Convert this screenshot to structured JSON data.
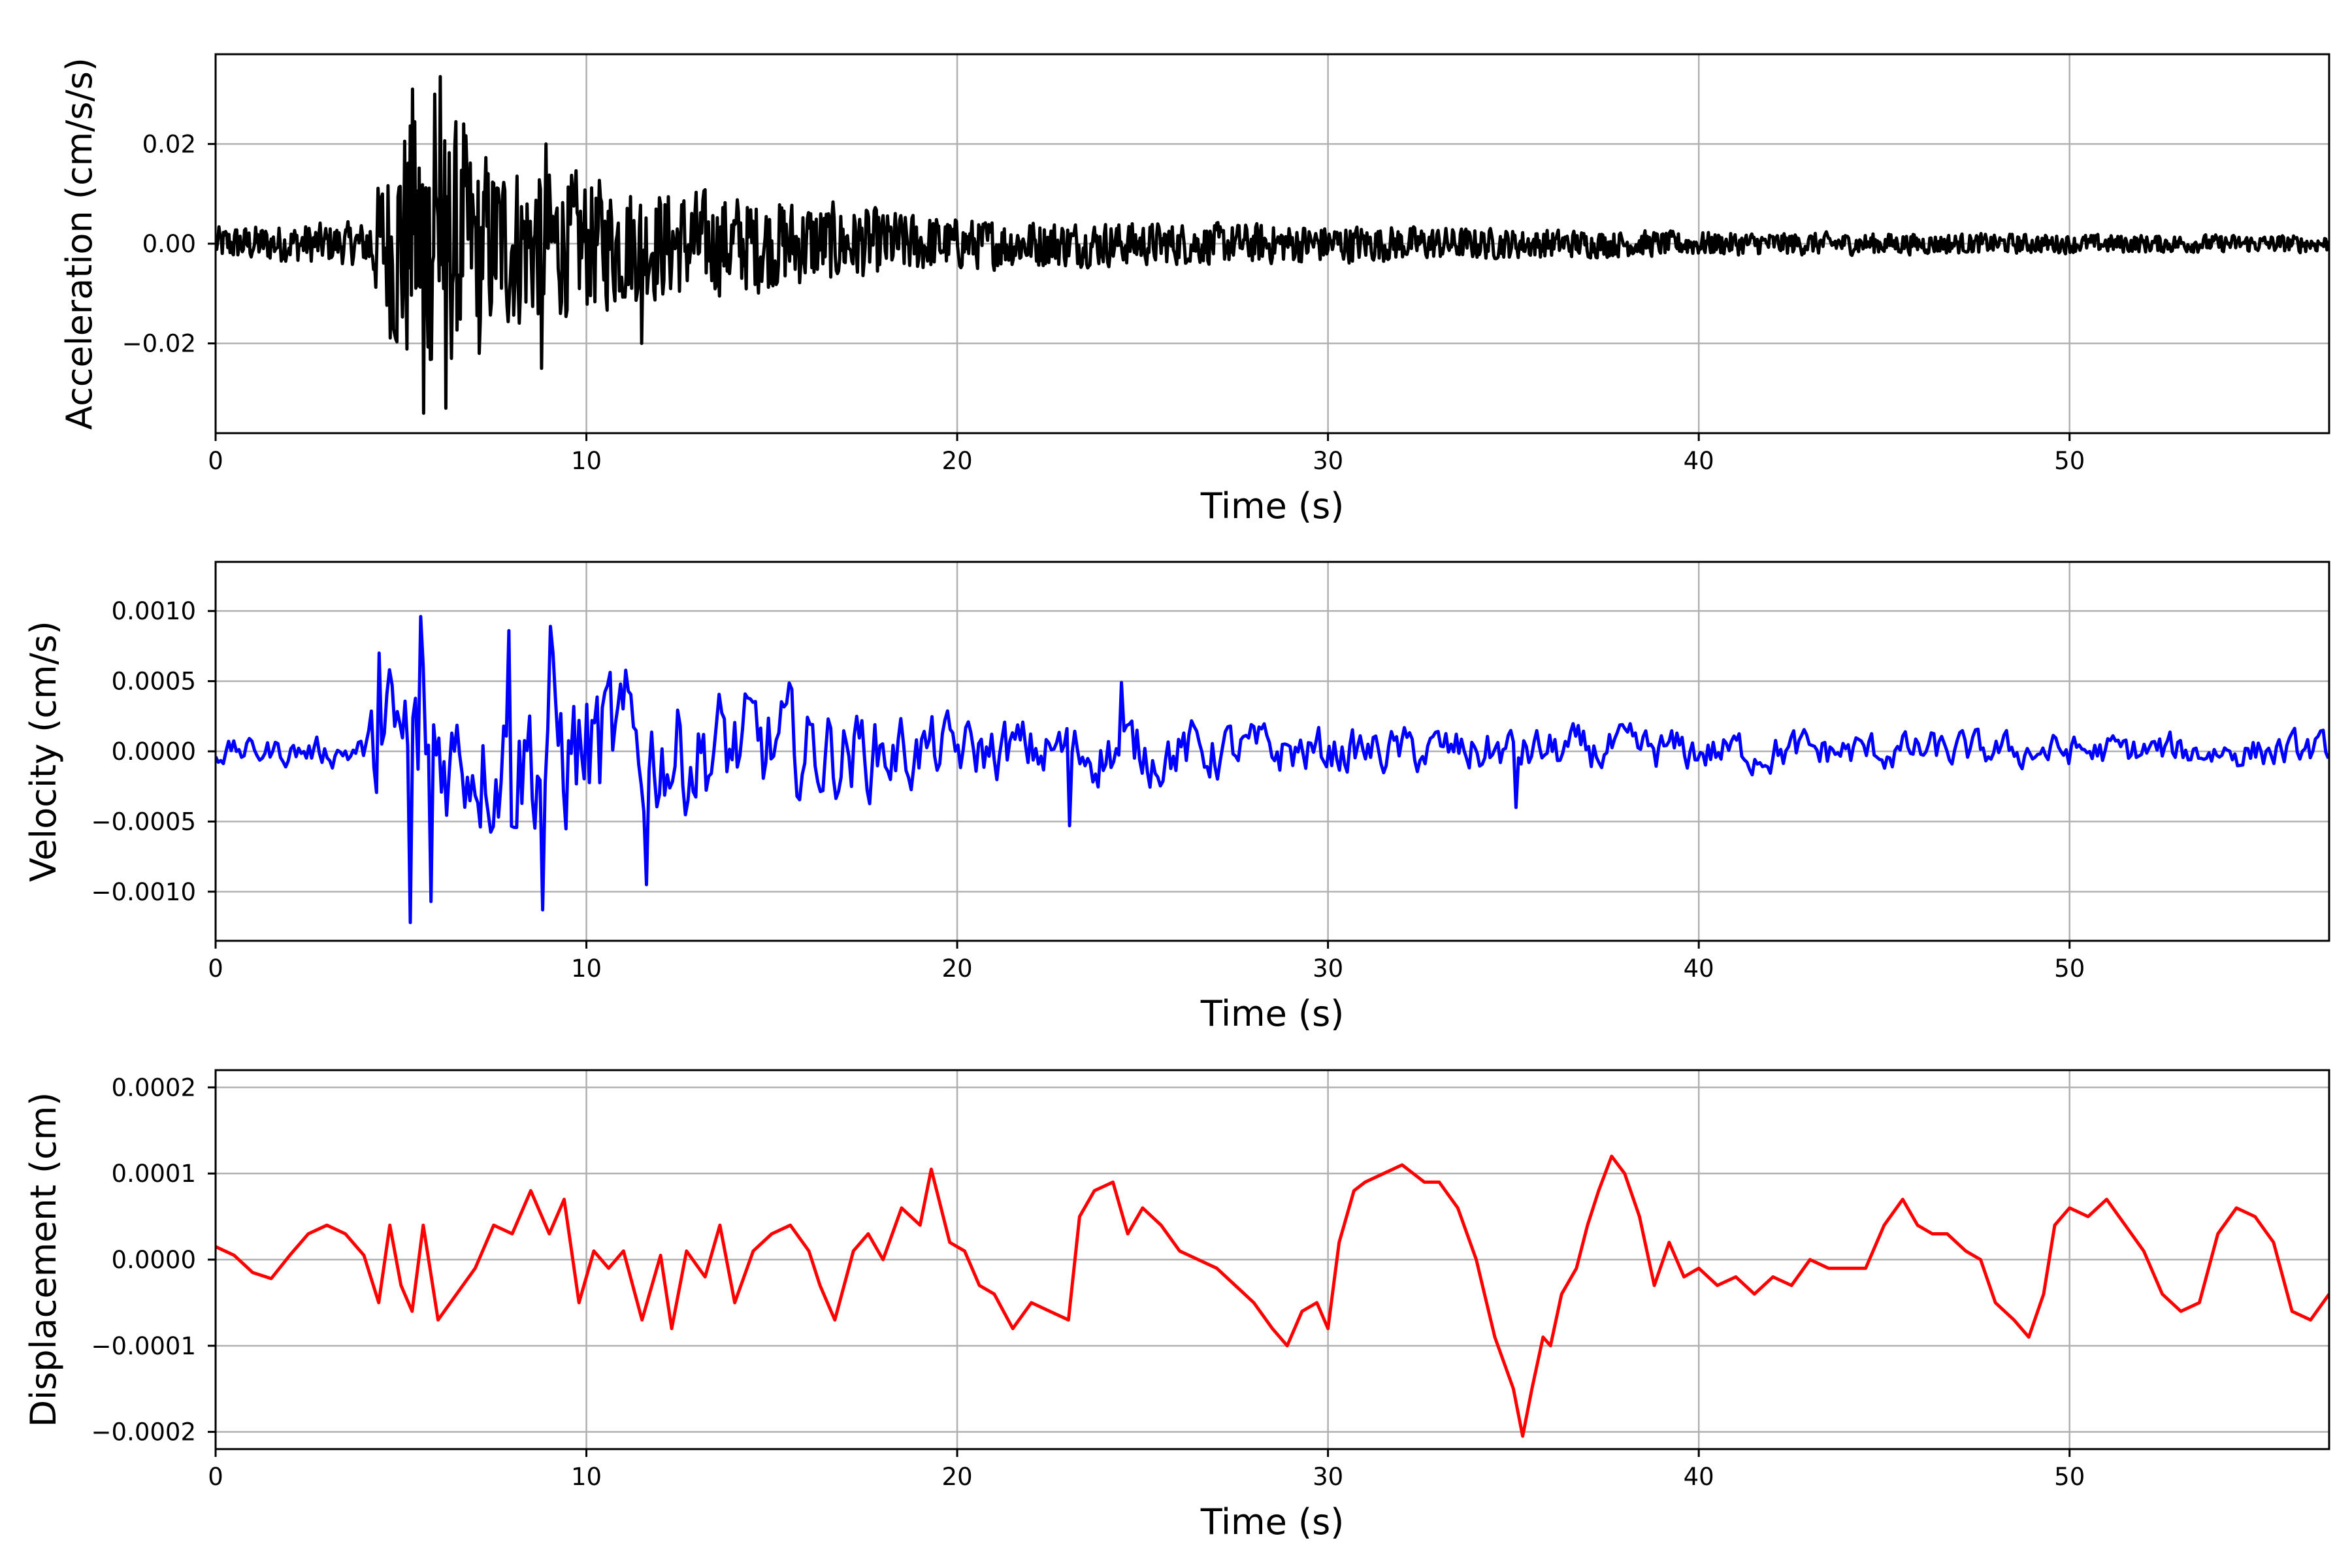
{
  "chart_data": [
    {
      "type": "line",
      "name": "acceleration-panel",
      "xlabel": "Time (s)",
      "ylabel": "Acceleration (cm/s/s)",
      "xlim": [
        0,
        57
      ],
      "ylim": [
        -0.038,
        0.038
      ],
      "xticks": [
        0,
        10,
        20,
        30,
        40,
        50
      ],
      "xtick_labels": [
        "0",
        "10",
        "20",
        "30",
        "40",
        "50"
      ],
      "yticks": [
        -0.02,
        0.0,
        0.02
      ],
      "ytick_labels": [
        "−0.02",
        "0.00",
        "0.02"
      ],
      "grid": true,
      "color": "#000000",
      "envelope": [
        [
          0,
          0.004
        ],
        [
          4,
          0.005
        ],
        [
          5,
          0.03
        ],
        [
          6,
          0.033
        ],
        [
          7,
          0.022
        ],
        [
          9,
          0.018
        ],
        [
          10,
          0.016
        ],
        [
          12,
          0.013
        ],
        [
          15,
          0.011
        ],
        [
          20,
          0.006
        ],
        [
          25,
          0.005
        ],
        [
          30,
          0.0045
        ],
        [
          35,
          0.0035
        ],
        [
          40,
          0.0028
        ],
        [
          50,
          0.0022
        ],
        [
          57,
          0.002
        ]
      ],
      "peaks": [
        [
          5.3,
          0.031
        ],
        [
          5.6,
          -0.034
        ],
        [
          5.9,
          0.03
        ],
        [
          6.05,
          0.0335
        ],
        [
          6.2,
          -0.033
        ],
        [
          6.7,
          0.024
        ],
        [
          7.1,
          -0.022
        ],
        [
          8.8,
          -0.025
        ],
        [
          8.9,
          0.02
        ],
        [
          11.5,
          -0.02
        ]
      ]
    },
    {
      "type": "line",
      "name": "velocity-panel",
      "xlabel": "Time (s)",
      "ylabel": "Velocity (cm/s)",
      "xlim": [
        0,
        57
      ],
      "ylim": [
        -0.00135,
        0.00135
      ],
      "xticks": [
        0,
        10,
        20,
        30,
        40,
        50
      ],
      "xtick_labels": [
        "0",
        "10",
        "20",
        "30",
        "40",
        "50"
      ],
      "yticks": [
        -0.001,
        -0.0005,
        0.0,
        0.0005,
        0.001
      ],
      "ytick_labels": [
        "−0.0010",
        "−0.0005",
        "0.0000",
        "0.0005",
        "0.0010"
      ],
      "grid": true,
      "color": "#0000ff",
      "envelope": [
        [
          0,
          0.00012
        ],
        [
          4,
          0.00015
        ],
        [
          4.5,
          0.0007
        ],
        [
          5.5,
          0.001
        ],
        [
          6.5,
          0.0006
        ],
        [
          8,
          0.0008
        ],
        [
          9,
          0.0009
        ],
        [
          12,
          0.0006
        ],
        [
          16,
          0.0005
        ],
        [
          20,
          0.0003
        ],
        [
          25,
          0.0003
        ],
        [
          30,
          0.00022
        ],
        [
          35,
          0.00022
        ],
        [
          40,
          0.0002
        ],
        [
          50,
          0.00016
        ],
        [
          57,
          0.00016
        ]
      ],
      "peaks": [
        [
          4.4,
          0.0007
        ],
        [
          5.25,
          -0.00122
        ],
        [
          5.5,
          0.00096
        ],
        [
          5.8,
          -0.00107
        ],
        [
          7.9,
          0.00086
        ],
        [
          8.85,
          -0.00113
        ],
        [
          9.05,
          0.00089
        ],
        [
          11.6,
          -0.00095
        ],
        [
          23.0,
          -0.00053
        ],
        [
          24.4,
          0.00049
        ],
        [
          35.1,
          -0.0004
        ]
      ]
    },
    {
      "type": "line",
      "name": "displacement-panel",
      "xlabel": "Time (s)",
      "ylabel": "Displacement (cm)",
      "xlim": [
        0,
        57
      ],
      "ylim": [
        -0.00022,
        0.00022
      ],
      "xticks": [
        0,
        10,
        20,
        30,
        40,
        50
      ],
      "xtick_labels": [
        "0",
        "10",
        "20",
        "30",
        "40",
        "50"
      ],
      "yticks": [
        -0.0002,
        -0.0001,
        0.0,
        0.0001,
        0.0002
      ],
      "ytick_labels": [
        "−0.0002",
        "−0.0001",
        "0.0000",
        "0.0001",
        "0.0002"
      ],
      "grid": true,
      "color": "#ff0000",
      "x": [
        0,
        0.5,
        1,
        1.5,
        2,
        2.5,
        3,
        3.5,
        4,
        4.4,
        4.7,
        5.0,
        5.3,
        5.6,
        6.0,
        6.5,
        7.0,
        7.5,
        8.0,
        8.5,
        9.0,
        9.4,
        9.8,
        10.2,
        10.6,
        11.0,
        11.5,
        12.0,
        12.3,
        12.7,
        13.2,
        13.6,
        14.0,
        14.5,
        15.0,
        15.5,
        16.0,
        16.3,
        16.7,
        17.2,
        17.6,
        18.0,
        18.5,
        19.0,
        19.3,
        19.8,
        20.2,
        20.6,
        21.0,
        21.5,
        22.0,
        22.5,
        23.0,
        23.3,
        23.7,
        24.2,
        24.6,
        25.0,
        25.5,
        26.0,
        26.5,
        27.0,
        27.5,
        28.0,
        28.5,
        28.9,
        29.3,
        29.7,
        30.0,
        30.3,
        30.7,
        31.0,
        31.5,
        32.0,
        32.6,
        33.0,
        33.5,
        34.0,
        34.5,
        35.0,
        35.25,
        35.5,
        35.8,
        36.0,
        36.3,
        36.7,
        37.0,
        37.3,
        37.65,
        38.0,
        38.4,
        38.8,
        39.2,
        39.6,
        40.0,
        40.5,
        41.0,
        41.5,
        42.0,
        42.5,
        43.0,
        43.5,
        44.0,
        44.5,
        45.0,
        45.5,
        45.9,
        46.3,
        46.7,
        47.2,
        47.6,
        48.0,
        48.5,
        48.9,
        49.3,
        49.6,
        50.0,
        50.5,
        51.0,
        51.5,
        52.0,
        52.5,
        53.0,
        53.5,
        54.0,
        54.5,
        55.0,
        55.5,
        56.0,
        56.5,
        57.0
      ],
      "y": [
        1.5e-05,
        5e-06,
        -1.5e-05,
        -2.2e-05,
        5e-06,
        3e-05,
        4e-05,
        3e-05,
        5e-06,
        -5e-05,
        4e-05,
        -3e-05,
        -6e-05,
        4e-05,
        -7e-05,
        -4e-05,
        -1e-05,
        4e-05,
        3e-05,
        8e-05,
        3e-05,
        7e-05,
        -5e-05,
        1e-05,
        -1e-05,
        1e-05,
        -7e-05,
        5e-06,
        -8e-05,
        1e-05,
        -2e-05,
        4e-05,
        -5e-05,
        1e-05,
        3e-05,
        4e-05,
        1e-05,
        -3e-05,
        -7e-05,
        1e-05,
        3e-05,
        0.0,
        6e-05,
        4e-05,
        0.000105,
        2e-05,
        1e-05,
        -3e-05,
        -4e-05,
        -8e-05,
        -5e-05,
        -6e-05,
        -7e-05,
        5e-05,
        8e-05,
        9e-05,
        3e-05,
        6e-05,
        4e-05,
        1e-05,
        0.0,
        -1e-05,
        -3e-05,
        -5e-05,
        -8e-05,
        -0.0001,
        -6e-05,
        -5e-05,
        -8e-05,
        2e-05,
        8e-05,
        9e-05,
        0.0001,
        0.00011,
        9e-05,
        9e-05,
        6e-05,
        0.0,
        -9e-05,
        -0.00015,
        -0.000205,
        -0.00015,
        -9e-05,
        -0.0001,
        -4e-05,
        -1e-05,
        4e-05,
        8e-05,
        0.00012,
        0.0001,
        5e-05,
        -3e-05,
        2e-05,
        -2e-05,
        -1e-05,
        -3e-05,
        -2e-05,
        -4e-05,
        -2e-05,
        -3e-05,
        0.0,
        -1e-05,
        -1e-05,
        -1e-05,
        4e-05,
        7e-05,
        4e-05,
        3e-05,
        3e-05,
        1e-05,
        0.0,
        -5e-05,
        -7e-05,
        -9e-05,
        -4e-05,
        4e-05,
        6e-05,
        5e-05,
        7e-05,
        4e-05,
        1e-05,
        -4e-05,
        -6e-05,
        -5e-05,
        3e-05,
        6e-05,
        5e-05,
        2e-05,
        -6e-05,
        -7e-05,
        -4e-05
      ]
    }
  ]
}
